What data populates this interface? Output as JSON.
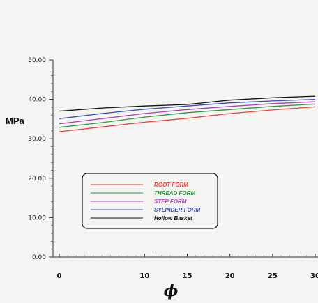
{
  "chart_data": {
    "type": "line",
    "ylabel": "MPa",
    "xlabel": "ϕ",
    "x": [
      0,
      5,
      10,
      15,
      20,
      25,
      30
    ],
    "xlim": [
      0,
      30
    ],
    "ylim": [
      0,
      50
    ],
    "x_ticks": [
      "0",
      "10",
      "15",
      "20",
      "25",
      "30"
    ],
    "x_tick_values": [
      0,
      10,
      15,
      20,
      25,
      30
    ],
    "y_ticks": [
      "0.00",
      "10.00",
      "20.00",
      "30.00",
      "40.00",
      "50.00"
    ],
    "y_tick_values": [
      0,
      10,
      20,
      30,
      40,
      50
    ],
    "grid": false,
    "legend_position": "lower-left",
    "series": [
      {
        "name": "ROOT FORM",
        "color": "#e8413b",
        "values": [
          31.8,
          33.0,
          34.2,
          35.2,
          36.4,
          37.3,
          38.1
        ]
      },
      {
        "name": "THREAD FORM",
        "color": "#2c9a3a",
        "values": [
          32.9,
          34.1,
          35.5,
          36.6,
          37.4,
          38.2,
          38.8
        ]
      },
      {
        "name": "STEP FORM",
        "color": "#b03fb0",
        "values": [
          33.8,
          35.1,
          36.4,
          37.4,
          38.2,
          38.9,
          39.4
        ]
      },
      {
        "name": "SYLINDER FORM",
        "color": "#3c4fb0",
        "values": [
          35.1,
          36.4,
          37.5,
          38.3,
          39.1,
          39.6,
          40.0
        ]
      },
      {
        "name": "Hollow Basket",
        "color": "#111111",
        "values": [
          37.0,
          37.8,
          38.3,
          38.7,
          39.8,
          40.4,
          40.8
        ]
      }
    ]
  }
}
